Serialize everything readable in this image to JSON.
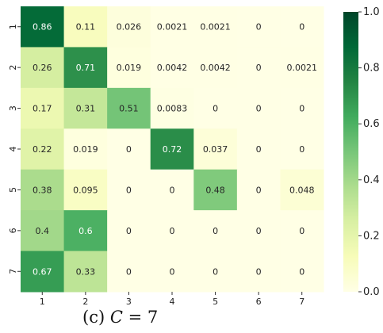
{
  "chart_data": {
    "type": "heatmap",
    "x_categories": [
      "1",
      "2",
      "3",
      "4",
      "5",
      "6",
      "7"
    ],
    "y_categories": [
      "1",
      "2",
      "3",
      "4",
      "5",
      "6",
      "7"
    ],
    "values": [
      [
        0.86,
        0.11,
        0.026,
        0.0021,
        0.0021,
        0,
        0
      ],
      [
        0.26,
        0.71,
        0.019,
        0.0042,
        0.0042,
        0,
        0.0021
      ],
      [
        0.17,
        0.31,
        0.51,
        0.0083,
        0,
        0,
        0
      ],
      [
        0.22,
        0.019,
        0,
        0.72,
        0.037,
        0,
        0
      ],
      [
        0.38,
        0.095,
        0,
        0,
        0.48,
        0,
        0.048
      ],
      [
        0.4,
        0.6,
        0,
        0,
        0,
        0,
        0
      ],
      [
        0.67,
        0.33,
        0,
        0,
        0,
        0,
        0
      ]
    ],
    "labels": [
      [
        "0.86",
        "0.11",
        "0.026",
        "0.0021",
        "0.0021",
        "0",
        "0"
      ],
      [
        "0.26",
        "0.71",
        "0.019",
        "0.0042",
        "0.0042",
        "0",
        "0.0021"
      ],
      [
        "0.17",
        "0.31",
        "0.51",
        "0.0083",
        "0",
        "0",
        "0"
      ],
      [
        "0.22",
        "0.019",
        "0",
        "0.72",
        "0.037",
        "0",
        "0"
      ],
      [
        "0.38",
        "0.095",
        "0",
        "0",
        "0.48",
        "0",
        "0.048"
      ],
      [
        "0.4",
        "0.6",
        "0",
        "0",
        "0",
        "0",
        "0"
      ],
      [
        "0.67",
        "0.33",
        "0",
        "0",
        "0",
        "0",
        "0"
      ]
    ],
    "colorscale": "YlGn",
    "colorbar": {
      "range": [
        0.0,
        1.0
      ],
      "ticks": [
        "0.0",
        "0.2",
        "0.4",
        "0.6",
        "0.8",
        "1.0"
      ]
    }
  },
  "caption": {
    "prefix": "(c) ",
    "variable": "C",
    "suffix": " = 7"
  }
}
